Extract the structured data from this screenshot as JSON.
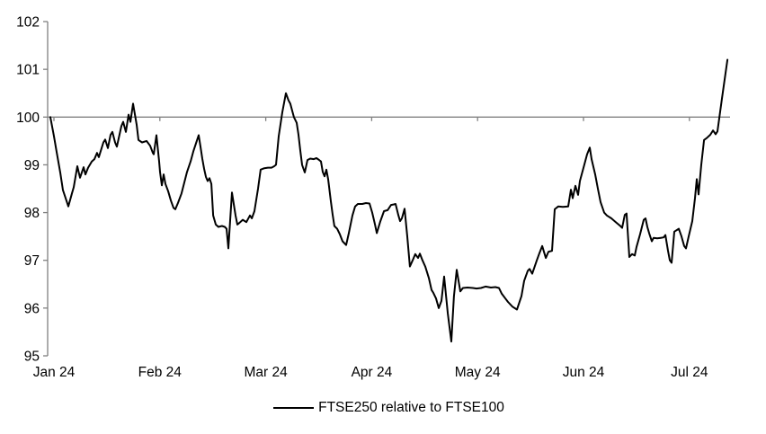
{
  "chart_data": {
    "type": "line",
    "title": "",
    "xlabel": "",
    "ylabel": "",
    "x_unit": "months since Jan 2024 tick (0 = Jan 24, 6 = Jul 24), daily data",
    "x_tick_labels": [
      "Jan 24",
      "Feb 24",
      "Mar 24",
      "Apr 24",
      "May 24",
      "Jun 24",
      "Jul 24"
    ],
    "x_tick_positions": [
      0,
      1,
      2,
      3,
      4,
      5,
      6
    ],
    "xlim": [
      -0.06,
      6.45
    ],
    "y_ticks": [
      95,
      96,
      97,
      98,
      99,
      100,
      101,
      102
    ],
    "ylim": [
      95,
      102
    ],
    "reference_line": 100,
    "grid": "none (single horizontal reference line at 100 with month tick marks)",
    "legend_position": "bottom-center",
    "series": [
      {
        "name": "FTSE250 relative to FTSE100",
        "color": "#000000",
        "points": [
          [
            -0.034,
            100.0
          ],
          [
            0.0,
            99.6
          ],
          [
            0.025,
            99.28
          ],
          [
            0.059,
            98.84
          ],
          [
            0.085,
            98.47
          ],
          [
            0.11,
            98.3
          ],
          [
            0.136,
            98.13
          ],
          [
            0.17,
            98.4
          ],
          [
            0.187,
            98.53
          ],
          [
            0.221,
            98.97
          ],
          [
            0.246,
            98.73
          ],
          [
            0.28,
            98.95
          ],
          [
            0.297,
            98.8
          ],
          [
            0.323,
            98.94
          ],
          [
            0.357,
            99.07
          ],
          [
            0.382,
            99.12
          ],
          [
            0.407,
            99.25
          ],
          [
            0.424,
            99.16
          ],
          [
            0.467,
            99.47
          ],
          [
            0.484,
            99.53
          ],
          [
            0.509,
            99.35
          ],
          [
            0.535,
            99.63
          ],
          [
            0.552,
            99.69
          ],
          [
            0.577,
            99.47
          ],
          [
            0.594,
            99.38
          ],
          [
            0.637,
            99.81
          ],
          [
            0.654,
            99.9
          ],
          [
            0.679,
            99.69
          ],
          [
            0.705,
            100.05
          ],
          [
            0.722,
            99.9
          ],
          [
            0.747,
            100.28
          ],
          [
            0.781,
            99.84
          ],
          [
            0.798,
            99.52
          ],
          [
            0.832,
            99.47
          ],
          [
            0.874,
            99.5
          ],
          [
            0.908,
            99.4
          ],
          [
            0.934,
            99.25
          ],
          [
            0.942,
            99.22
          ],
          [
            0.968,
            99.62
          ],
          [
            0.993,
            99.07
          ],
          [
            1.002,
            98.85
          ],
          [
            1.019,
            98.57
          ],
          [
            1.036,
            98.8
          ],
          [
            1.053,
            98.6
          ],
          [
            1.078,
            98.45
          ],
          [
            1.104,
            98.25
          ],
          [
            1.129,
            98.1
          ],
          [
            1.146,
            98.07
          ],
          [
            1.171,
            98.2
          ],
          [
            1.205,
            98.4
          ],
          [
            1.231,
            98.63
          ],
          [
            1.256,
            98.85
          ],
          [
            1.29,
            99.07
          ],
          [
            1.316,
            99.28
          ],
          [
            1.341,
            99.45
          ],
          [
            1.367,
            99.62
          ],
          [
            1.384,
            99.38
          ],
          [
            1.401,
            99.13
          ],
          [
            1.418,
            98.92
          ],
          [
            1.435,
            98.75
          ],
          [
            1.452,
            98.66
          ],
          [
            1.469,
            98.72
          ],
          [
            1.486,
            98.6
          ],
          [
            1.503,
            97.94
          ],
          [
            1.528,
            97.75
          ],
          [
            1.553,
            97.7
          ],
          [
            1.587,
            97.72
          ],
          [
            1.613,
            97.7
          ],
          [
            1.63,
            97.66
          ],
          [
            1.647,
            97.25
          ],
          [
            1.681,
            98.42
          ],
          [
            1.715,
            97.94
          ],
          [
            1.732,
            97.75
          ],
          [
            1.749,
            97.78
          ],
          [
            1.783,
            97.85
          ],
          [
            1.817,
            97.8
          ],
          [
            1.851,
            97.94
          ],
          [
            1.868,
            97.88
          ],
          [
            1.893,
            98.03
          ],
          [
            1.927,
            98.5
          ],
          [
            1.952,
            98.9
          ],
          [
            1.986,
            98.93
          ],
          [
            2.02,
            98.94
          ],
          [
            2.054,
            98.94
          ],
          [
            2.08,
            98.97
          ],
          [
            2.097,
            99.0
          ],
          [
            2.122,
            99.6
          ],
          [
            2.156,
            100.1
          ],
          [
            2.19,
            100.5
          ],
          [
            2.215,
            100.35
          ],
          [
            2.232,
            100.28
          ],
          [
            2.266,
            100.0
          ],
          [
            2.292,
            99.88
          ],
          [
            2.309,
            99.63
          ],
          [
            2.326,
            99.3
          ],
          [
            2.343,
            99.0
          ],
          [
            2.368,
            98.84
          ],
          [
            2.394,
            99.1
          ],
          [
            2.419,
            99.13
          ],
          [
            2.453,
            99.12
          ],
          [
            2.479,
            99.14
          ],
          [
            2.504,
            99.1
          ],
          [
            2.521,
            99.07
          ],
          [
            2.538,
            98.85
          ],
          [
            2.555,
            98.76
          ],
          [
            2.572,
            98.9
          ],
          [
            2.589,
            98.7
          ],
          [
            2.614,
            98.25
          ],
          [
            2.631,
            97.97
          ],
          [
            2.648,
            97.72
          ],
          [
            2.674,
            97.66
          ],
          [
            2.699,
            97.55
          ],
          [
            2.725,
            97.4
          ],
          [
            2.759,
            97.32
          ],
          [
            2.784,
            97.57
          ],
          [
            2.818,
            97.94
          ],
          [
            2.844,
            98.13
          ],
          [
            2.869,
            98.18
          ],
          [
            2.912,
            98.18
          ],
          [
            2.946,
            98.2
          ],
          [
            2.98,
            98.19
          ],
          [
            3.005,
            98.0
          ],
          [
            3.031,
            97.75
          ],
          [
            3.048,
            97.57
          ],
          [
            3.082,
            97.82
          ],
          [
            3.116,
            98.03
          ],
          [
            3.15,
            98.05
          ],
          [
            3.183,
            98.16
          ],
          [
            3.209,
            98.17
          ],
          [
            3.226,
            98.18
          ],
          [
            3.251,
            97.95
          ],
          [
            3.268,
            97.82
          ],
          [
            3.285,
            97.88
          ],
          [
            3.311,
            98.08
          ],
          [
            3.336,
            97.5
          ],
          [
            3.361,
            96.87
          ],
          [
            3.387,
            97.0
          ],
          [
            3.412,
            97.13
          ],
          [
            3.438,
            97.05
          ],
          [
            3.455,
            97.14
          ],
          [
            3.48,
            97.0
          ],
          [
            3.506,
            96.87
          ],
          [
            3.54,
            96.63
          ],
          [
            3.565,
            96.38
          ],
          [
            3.582,
            96.32
          ],
          [
            3.608,
            96.2
          ],
          [
            3.633,
            96.0
          ],
          [
            3.659,
            96.15
          ],
          [
            3.684,
            96.66
          ],
          [
            3.718,
            95.9
          ],
          [
            3.752,
            95.3
          ],
          [
            3.777,
            96.25
          ],
          [
            3.803,
            96.8
          ],
          [
            3.837,
            96.35
          ],
          [
            3.862,
            96.42
          ],
          [
            3.905,
            96.43
          ],
          [
            3.956,
            96.42
          ],
          [
            3.99,
            96.41
          ],
          [
            4.032,
            96.42
          ],
          [
            4.075,
            96.45
          ],
          [
            4.126,
            96.43
          ],
          [
            4.168,
            96.44
          ],
          [
            4.202,
            96.42
          ],
          [
            4.228,
            96.3
          ],
          [
            4.262,
            96.2
          ],
          [
            4.287,
            96.13
          ],
          [
            4.329,
            96.03
          ],
          [
            4.372,
            95.97
          ],
          [
            4.414,
            96.25
          ],
          [
            4.44,
            96.57
          ],
          [
            4.474,
            96.78
          ],
          [
            4.491,
            96.82
          ],
          [
            4.516,
            96.72
          ],
          [
            4.559,
            97.0
          ],
          [
            4.584,
            97.15
          ],
          [
            4.61,
            97.3
          ],
          [
            4.644,
            97.05
          ],
          [
            4.669,
            97.18
          ],
          [
            4.703,
            97.2
          ],
          [
            4.728,
            98.07
          ],
          [
            4.762,
            98.13
          ],
          [
            4.805,
            98.12
          ],
          [
            4.856,
            98.13
          ],
          [
            4.881,
            98.48
          ],
          [
            4.898,
            98.3
          ],
          [
            4.924,
            98.56
          ],
          [
            4.949,
            98.37
          ],
          [
            4.966,
            98.66
          ],
          [
            5.008,
            99.0
          ],
          [
            5.034,
            99.22
          ],
          [
            5.059,
            99.36
          ],
          [
            5.076,
            99.12
          ],
          [
            5.11,
            98.8
          ],
          [
            5.136,
            98.5
          ],
          [
            5.161,
            98.22
          ],
          [
            5.195,
            98.0
          ],
          [
            5.221,
            97.94
          ],
          [
            5.263,
            97.88
          ],
          [
            5.305,
            97.8
          ],
          [
            5.348,
            97.72
          ],
          [
            5.365,
            97.68
          ],
          [
            5.39,
            97.95
          ],
          [
            5.407,
            97.98
          ],
          [
            5.433,
            97.07
          ],
          [
            5.458,
            97.13
          ],
          [
            5.484,
            97.1
          ],
          [
            5.501,
            97.28
          ],
          [
            5.535,
            97.55
          ],
          [
            5.569,
            97.85
          ],
          [
            5.586,
            97.88
          ],
          [
            5.603,
            97.7
          ],
          [
            5.62,
            97.57
          ],
          [
            5.645,
            97.4
          ],
          [
            5.662,
            97.47
          ],
          [
            5.696,
            97.46
          ],
          [
            5.73,
            97.47
          ],
          [
            5.756,
            97.48
          ],
          [
            5.773,
            97.53
          ],
          [
            5.798,
            97.2
          ],
          [
            5.815,
            97.0
          ],
          [
            5.832,
            96.95
          ],
          [
            5.857,
            97.6
          ],
          [
            5.9,
            97.66
          ],
          [
            5.925,
            97.5
          ],
          [
            5.951,
            97.3
          ],
          [
            5.968,
            97.25
          ],
          [
            5.993,
            97.5
          ],
          [
            6.027,
            97.82
          ],
          [
            6.053,
            98.3
          ],
          [
            6.07,
            98.7
          ],
          [
            6.087,
            98.38
          ],
          [
            6.112,
            99.0
          ],
          [
            6.138,
            99.52
          ],
          [
            6.163,
            99.56
          ],
          [
            6.197,
            99.63
          ],
          [
            6.223,
            99.72
          ],
          [
            6.248,
            99.64
          ],
          [
            6.265,
            99.7
          ],
          [
            6.308,
            100.4
          ],
          [
            6.359,
            101.2
          ]
        ]
      }
    ]
  },
  "legend": {
    "label": "FTSE250 relative to FTSE100"
  },
  "colors": {
    "line": "#000000",
    "axis": "#808080",
    "text": "#000000",
    "background": "#ffffff"
  }
}
